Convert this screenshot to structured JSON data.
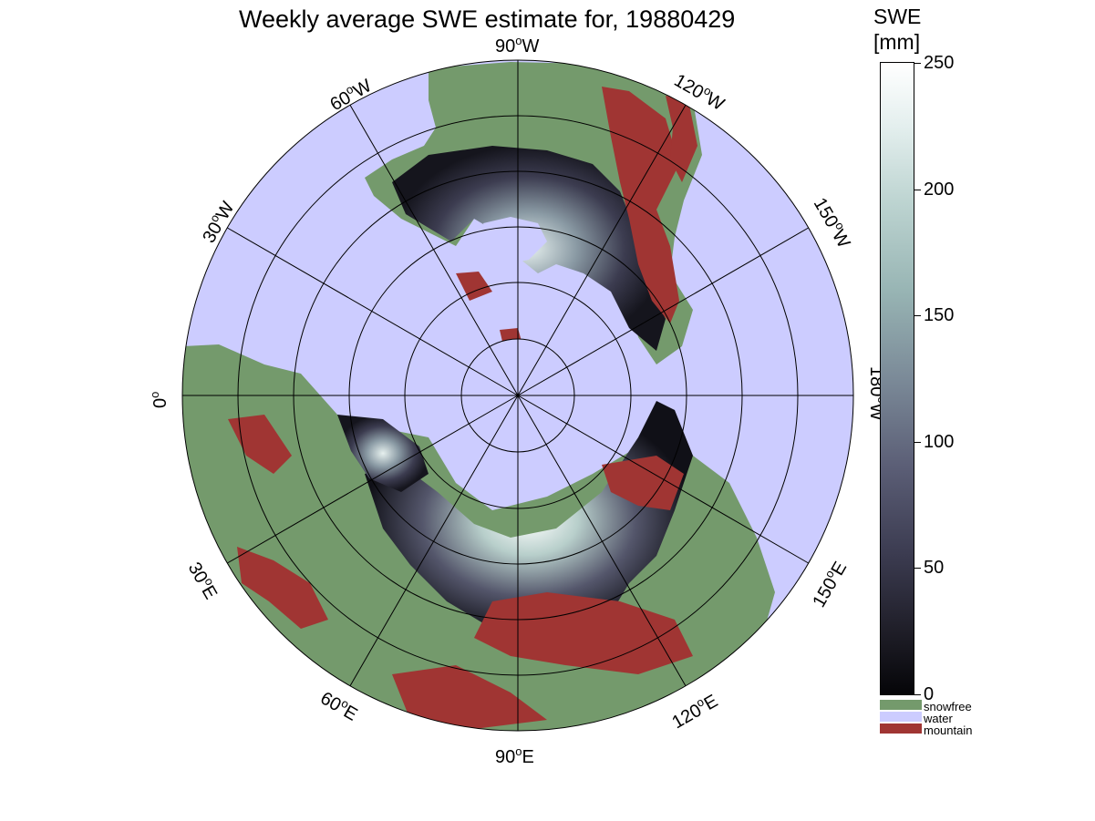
{
  "title": "Weekly average SWE estimate for, 19880429",
  "colorbar": {
    "title_line1": "SWE",
    "title_line2": "[mm]",
    "ticks": [
      "250",
      "200",
      "150",
      "100",
      "50",
      "0"
    ],
    "tick_values": [
      250,
      200,
      150,
      100,
      50,
      0
    ],
    "range": [
      0,
      250
    ]
  },
  "legend": [
    {
      "label": "snowfree",
      "color": "#749a6c"
    },
    {
      "label": "water",
      "color": "#ccccff"
    },
    {
      "label": "mountain",
      "color": "#a03533"
    }
  ],
  "meridian_labels": {
    "m90w": "90",
    "m60w": "60",
    "m30w": "30",
    "m0": "0",
    "m30e": "30",
    "m60e": "60",
    "m90e": "90",
    "m120e": "120",
    "m150e": "150",
    "m180w": "180",
    "m150w": "150",
    "m120w": "120",
    "deg": "o",
    "W": "W",
    "E": "E"
  },
  "colors": {
    "water": "#ccccff",
    "snowfree": "#749a6c",
    "mountain": "#a03533",
    "snow_low": "#0a0a10",
    "snow_high": "#ffffff"
  }
}
